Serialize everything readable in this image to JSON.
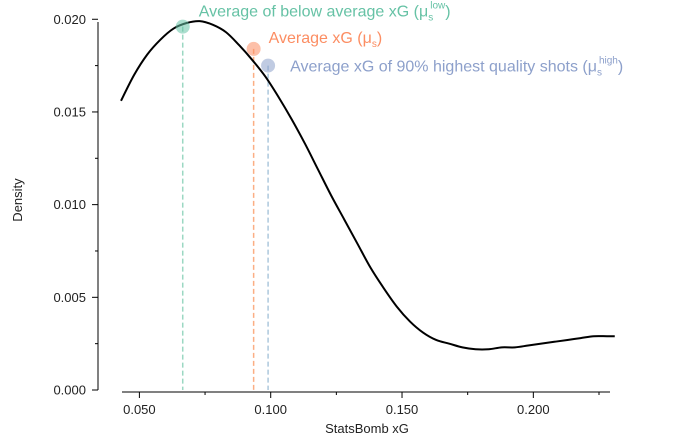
{
  "chart_data": {
    "type": "line",
    "xlabel": "StatsBomb xG",
    "ylabel": "Density",
    "xlim": [
      0.035,
      0.233
    ],
    "ylim": [
      0.0,
      0.0205
    ],
    "x_ticks": [
      0.05,
      0.1,
      0.15,
      0.2
    ],
    "x_tick_labels": [
      "0.050",
      "0.100",
      "0.150",
      "0.200"
    ],
    "x_minor_ticks": [
      0.075,
      0.125,
      0.175,
      0.225
    ],
    "y_ticks": [
      0.0,
      0.005,
      0.01,
      0.015,
      0.02
    ],
    "y_tick_labels": [
      "0.000",
      "0.005",
      "0.010",
      "0.015",
      "0.020"
    ],
    "y_minor_ticks": [
      0.0025,
      0.0075,
      0.0125,
      0.0175
    ],
    "grid": false,
    "density_curve": {
      "color": "#000000",
      "x": [
        0.043,
        0.048,
        0.053,
        0.058,
        0.063,
        0.068,
        0.073,
        0.078,
        0.083,
        0.088,
        0.093,
        0.098,
        0.103,
        0.108,
        0.113,
        0.118,
        0.123,
        0.128,
        0.133,
        0.138,
        0.143,
        0.148,
        0.153,
        0.158,
        0.163,
        0.168,
        0.173,
        0.178,
        0.183,
        0.188,
        0.193,
        0.198,
        0.203,
        0.208,
        0.213,
        0.218,
        0.223,
        0.228,
        0.231
      ],
      "y": [
        0.0156,
        0.017,
        0.0181,
        0.0189,
        0.0195,
        0.0198,
        0.0199,
        0.0197,
        0.0193,
        0.0186,
        0.0178,
        0.0169,
        0.0158,
        0.0146,
        0.0133,
        0.0119,
        0.0105,
        0.0092,
        0.0079,
        0.0066,
        0.0055,
        0.0045,
        0.0037,
        0.0031,
        0.0027,
        0.0025,
        0.0023,
        0.0022,
        0.0022,
        0.0023,
        0.0023,
        0.0024,
        0.0025,
        0.0026,
        0.0027,
        0.0028,
        0.0029,
        0.0029,
        0.0029
      ]
    },
    "markers": [
      {
        "label": "Average of below average xG (μ",
        "sub": "s",
        "sup": "low",
        "close": ")",
        "x": 0.0665,
        "y": 0.0196,
        "color": "#66c2a5",
        "text_color": "#66c2a5",
        "line_color": "#9bd8c2"
      },
      {
        "label": "Average xG (μ",
        "sub": "s",
        "sup": "",
        "close": ")",
        "x": 0.0935,
        "y": 0.0184,
        "color": "#fc8d62",
        "text_color": "#fc8d62",
        "line_color": "#fbae84"
      },
      {
        "label": "Average xG of 90% highest quality shots (μ",
        "sub": "s",
        "sup": "high",
        "close": ")",
        "x": 0.099,
        "y": 0.0175,
        "color": "#8da0cb",
        "text_color": "#8da0cb",
        "line_color": "#adc8dd"
      }
    ]
  }
}
